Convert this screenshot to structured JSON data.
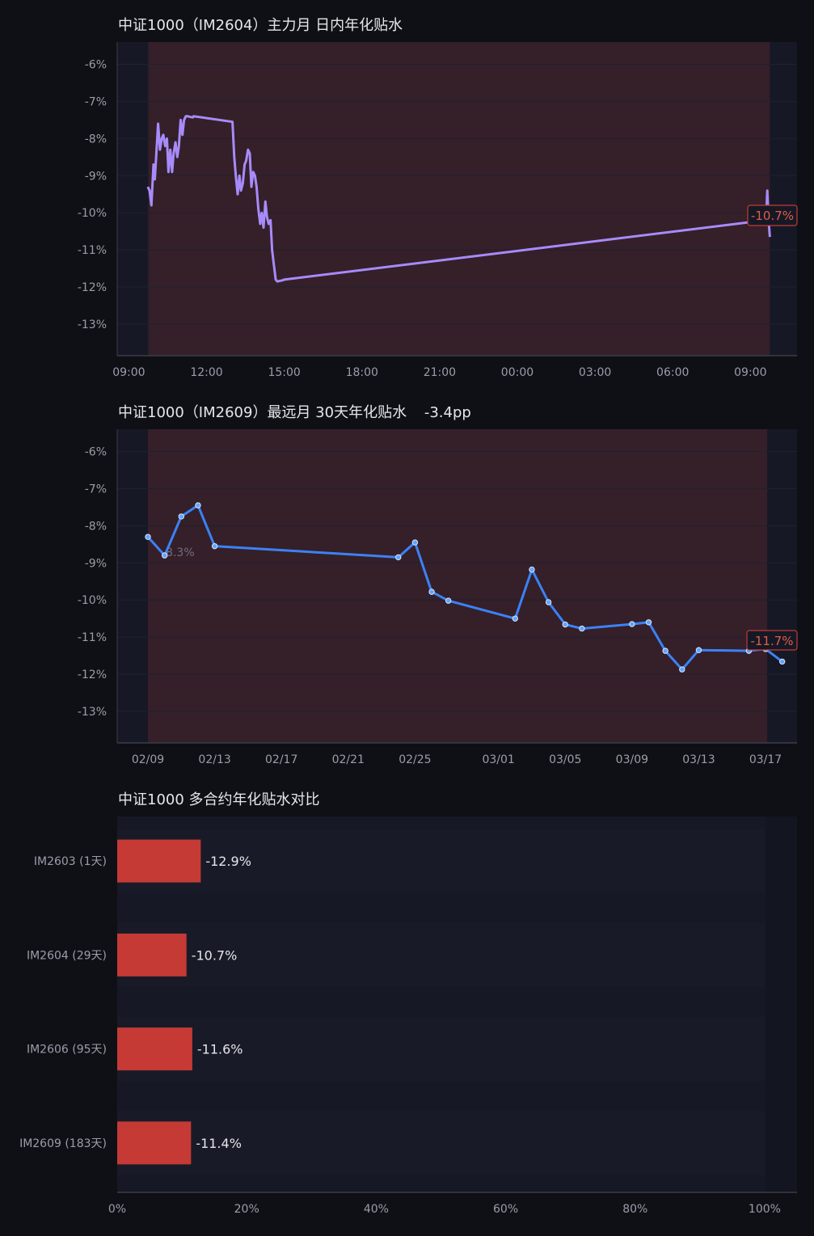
{
  "colors": {
    "background": "#0f1015",
    "panel": "#161925",
    "shade": "#351f29",
    "axis": "#3a3d4a",
    "grid": "#1e2130",
    "intraday_line": "#a78bfa",
    "curve_line": "#3b82f6",
    "bar": "#c53a35",
    "last_label": "#e25b4b"
  },
  "chart_data": [
    {
      "type": "line",
      "title": "中证1000（IM2604）主力月 日内年化贴水",
      "xlabel": "",
      "ylabel": "",
      "x_ticks": [
        "09:00",
        "12:00",
        "15:00",
        "18:00",
        "21:00",
        "00:00",
        "03:00",
        "06:00",
        "09:00"
      ],
      "y_ticks": [
        "-6%",
        "-7%",
        "-8%",
        "-9%",
        "-10%",
        "-11%",
        "-12%",
        "-13%"
      ],
      "ylim": [
        -13.85,
        -5.4
      ],
      "xlim_hours": [
        8.55,
        34.8
      ],
      "shaded_span_hours": [
        9.75,
        33.75
      ],
      "grid": true,
      "series": [
        {
          "x_hours": [
            9.73,
            9.8,
            9.87,
            9.95,
            10.0,
            10.07,
            10.13,
            10.2,
            10.27,
            10.33,
            10.4,
            10.47,
            10.53,
            10.6,
            10.67,
            10.73,
            10.8,
            10.87,
            10.93,
            11.0,
            11.07,
            11.13,
            11.2,
            11.27,
            11.33,
            11.4,
            11.47,
            11.5,
            13.0,
            13.07,
            13.13,
            13.2,
            13.27,
            13.33,
            13.4,
            13.47,
            13.53,
            13.6,
            13.67,
            13.73,
            13.8,
            13.87,
            13.93,
            14.0,
            14.07,
            14.13,
            14.2,
            14.27,
            14.33,
            14.4,
            14.47,
            14.53,
            14.6,
            14.67,
            14.73,
            14.8,
            14.87,
            14.93,
            15.0,
            33.6,
            33.65,
            33.7,
            33.75
          ],
          "y": [
            -9.3,
            -9.4,
            -9.8,
            -8.7,
            -9.1,
            -8.3,
            -7.6,
            -8.3,
            -8.0,
            -7.9,
            -8.2,
            -8.0,
            -8.9,
            -8.3,
            -8.9,
            -8.4,
            -8.1,
            -8.5,
            -8.2,
            -7.5,
            -7.9,
            -7.5,
            -7.4,
            -7.4,
            -7.41,
            -7.42,
            -7.43,
            -7.4,
            -7.55,
            -8.5,
            -9.0,
            -9.5,
            -9.0,
            -9.4,
            -9.2,
            -8.7,
            -8.6,
            -8.3,
            -8.4,
            -9.3,
            -8.9,
            -9.0,
            -9.3,
            -9.9,
            -10.3,
            -10.0,
            -10.4,
            -9.7,
            -10.1,
            -10.3,
            -10.2,
            -11.0,
            -11.4,
            -11.8,
            -11.85,
            -11.84,
            -11.83,
            -11.82,
            -11.8,
            -10.2,
            -9.4,
            -10.2,
            -10.65
          ]
        }
      ],
      "last_value_label": "-10.7%"
    },
    {
      "type": "line",
      "title": "中证1000（IM2609）最远月 30天年化贴水",
      "change": "-3.4pp",
      "xlabel": "",
      "ylabel": "",
      "x_ticks": [
        "02/09",
        "02/13",
        "02/17",
        "02/21",
        "02/25",
        "03/01",
        "03/05",
        "03/09",
        "03/13",
        "03/17"
      ],
      "y_ticks": [
        "-6%",
        "-7%",
        "-8%",
        "-9%",
        "-10%",
        "-11%",
        "-12%",
        "-13%"
      ],
      "ylim": [
        -13.85,
        -5.4
      ],
      "grid": true,
      "series": [
        {
          "name": "",
          "dates": [
            "02/09",
            "02/10",
            "02/11",
            "02/12",
            "02/13",
            "02/24",
            "02/25",
            "02/26",
            "02/27",
            "03/02",
            "03/03",
            "03/04",
            "03/05",
            "03/06",
            "03/09",
            "03/10",
            "03/11",
            "03/12",
            "03/13",
            "03/16",
            "03/17",
            "03/18"
          ],
          "y": [
            -8.3,
            -8.8,
            -7.75,
            -7.45,
            -8.55,
            -8.85,
            -8.45,
            -9.78,
            -10.02,
            -10.5,
            -9.18,
            -10.06,
            -10.66,
            -10.77,
            -10.65,
            -10.6,
            -11.37,
            -11.87,
            -11.35,
            -11.37,
            -11.32,
            -11.66
          ]
        }
      ],
      "first_value_label": "-8.3%",
      "last_value_label": "-11.7%"
    },
    {
      "type": "bar",
      "orientation": "horizontal",
      "title": "中证1000 多合约年化贴水对比",
      "categories": [
        "IM2603 (1天)",
        "IM2604 (29天)",
        "IM2606 (95天)",
        "IM2609 (183天)"
      ],
      "values": [
        -12.9,
        -10.7,
        -11.6,
        -11.4
      ],
      "value_labels": [
        "-12.9%",
        "-10.7%",
        "-11.6%",
        "-11.4%"
      ],
      "x_ticks": [
        "0%",
        "20%",
        "40%",
        "60%",
        "80%",
        "100%"
      ],
      "xlim": [
        0,
        105
      ],
      "grid": true
    }
  ]
}
